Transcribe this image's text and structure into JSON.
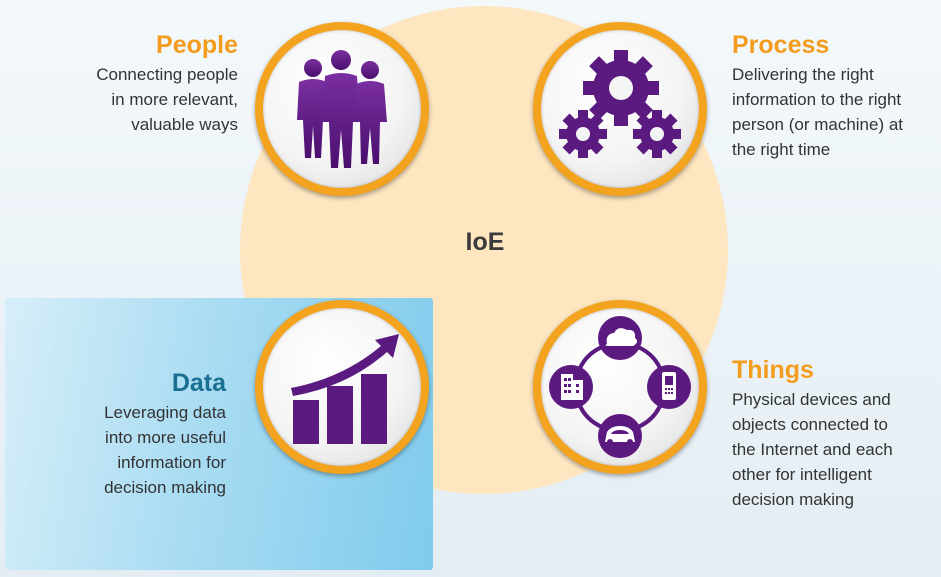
{
  "center": {
    "label": "IoE"
  },
  "colors": {
    "accent_orange": "#f39c1e",
    "icon_purple": "#5a1a80",
    "data_title": "#1a6f92",
    "circle_fill": "#fde6c0"
  },
  "nodes": {
    "people": {
      "title": "People",
      "description": "Connecting people\nin more relevant,\nvaluable ways",
      "icon": "people-icon"
    },
    "process": {
      "title": "Process",
      "description": "Delivering the right\ninformation to the right\nperson (or machine) at\nthe right time",
      "icon": "gears-icon"
    },
    "data": {
      "title": "Data",
      "description": "Leveraging data\ninto more useful\ninformation for\ndecision making",
      "icon": "bar-chart-icon"
    },
    "things": {
      "title": "Things",
      "description": "Physical devices and\nobjects connected to\nthe Internet and each\nother for intelligent\ndecision making",
      "icon": "connected-devices-icon"
    }
  }
}
